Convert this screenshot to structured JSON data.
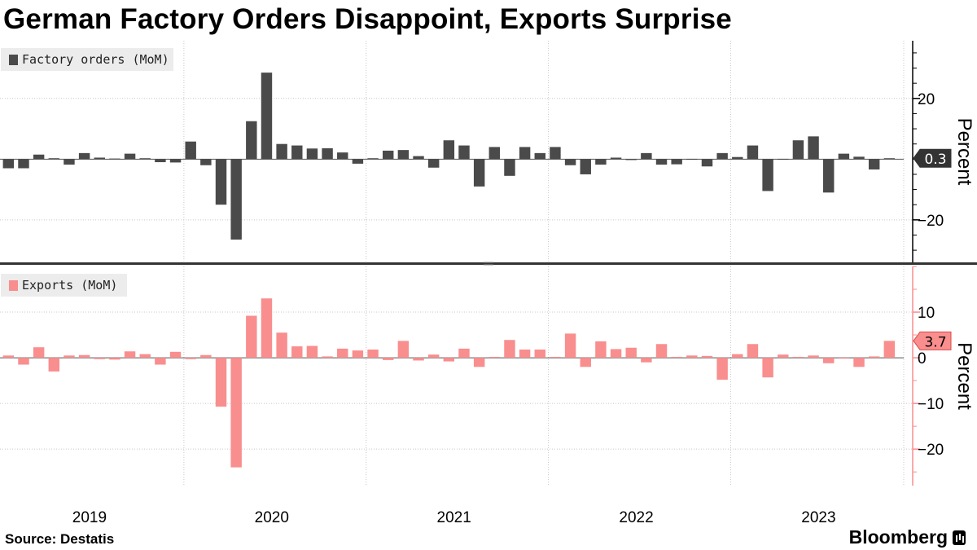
{
  "title": "German Factory Orders Disappoint, Exports Surprise",
  "source": "Source:  Destatis",
  "brand": "Bloomberg",
  "chart_data": [
    {
      "type": "bar",
      "legend": "Factory orders (MoM)",
      "ylabel": "Percent",
      "yticks": [
        20,
        -20
      ],
      "ylim": [
        -34,
        39
      ],
      "color": "#4a4a4a",
      "last_value_label": "0.3",
      "x_start": "2019-01",
      "values": [
        -3.0,
        -3.0,
        1.5,
        0.3,
        -1.8,
        2.0,
        0.5,
        0.2,
        1.8,
        0.3,
        -1.0,
        -1.1,
        5.8,
        -2.0,
        -15.0,
        -26.5,
        12.5,
        28.5,
        5.0,
        4.5,
        3.5,
        3.6,
        2.2,
        -1.5,
        0.3,
        2.8,
        3.0,
        1.0,
        -2.8,
        6.2,
        4.5,
        -9.0,
        4.0,
        -5.5,
        4.0,
        2.0,
        4.0,
        -2.0,
        -5.0,
        -1.8,
        0.5,
        -0.3,
        2.0,
        -1.8,
        -1.7,
        0.1,
        -2.4,
        2.0,
        0.7,
        4.5,
        -10.5,
        0.1,
        6.2,
        7.5,
        -11.0,
        1.8,
        0.8,
        -3.4,
        0.3
      ]
    },
    {
      "type": "bar",
      "legend": "Exports (MoM)",
      "ylabel": "Percent",
      "yticks": [
        10,
        0,
        -10,
        -20
      ],
      "ylim": [
        -28,
        20
      ],
      "color": "#f98e8e",
      "last_value_label": "3.7",
      "x_start": "2019-01",
      "values": [
        0.5,
        -1.5,
        2.3,
        -3.0,
        0.5,
        0.6,
        -0.3,
        -0.4,
        1.4,
        0.8,
        -1.5,
        1.3,
        -0.3,
        0.6,
        -10.7,
        -24.0,
        9.2,
        13.0,
        5.5,
        2.5,
        2.6,
        0.3,
        2.0,
        1.6,
        1.8,
        -0.5,
        3.7,
        -0.6,
        0.7,
        -0.8,
        2.0,
        -2.0,
        0.2,
        3.9,
        1.8,
        1.8,
        0.2,
        5.3,
        -2.0,
        3.6,
        1.9,
        2.2,
        -1.0,
        3.0,
        0.2,
        0.5,
        0.4,
        -4.8,
        0.8,
        3.0,
        -4.3,
        0.7,
        0.2,
        0.5,
        -1.2,
        0.0,
        -2.0,
        0.3,
        3.7
      ]
    }
  ],
  "x_axis": {
    "labels": [
      "2019",
      "2020",
      "2021",
      "2022",
      "2023"
    ]
  }
}
